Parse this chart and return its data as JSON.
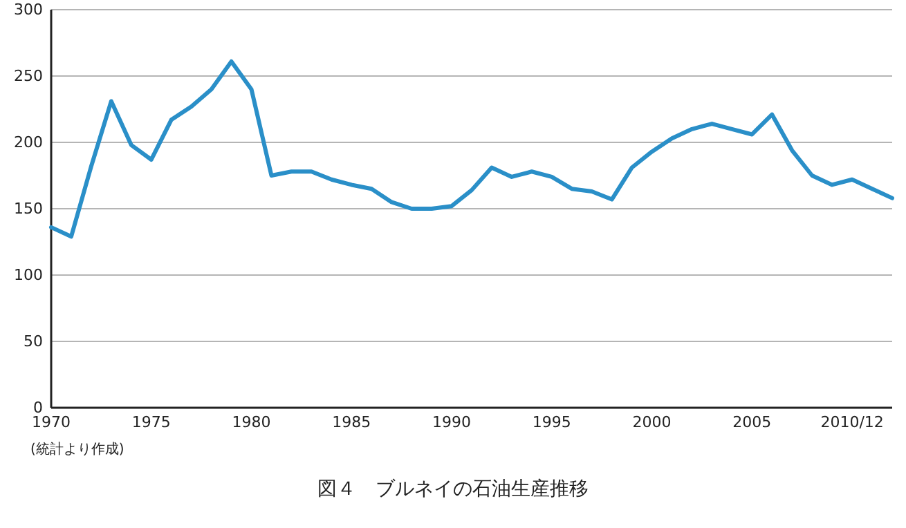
{
  "chart_data": {
    "type": "line",
    "title": "図４　ブルネイの石油生産推移",
    "annotations": [
      "(統計より作成)"
    ],
    "x": [
      1970,
      1971,
      1972,
      1973,
      1974,
      1975,
      1976,
      1977,
      1978,
      1979,
      1980,
      1981,
      1982,
      1983,
      1984,
      1985,
      1986,
      1987,
      1988,
      1989,
      1990,
      1991,
      1992,
      1993,
      1994,
      1995,
      1996,
      1997,
      1998,
      1999,
      2000,
      2001,
      2002,
      2003,
      2004,
      2005,
      2006,
      2007,
      2008,
      2009,
      2010,
      2011,
      2012
    ],
    "series": [
      {
        "color": "#2a8fc8",
        "values": [
          136,
          129,
          182,
          231,
          198,
          187,
          217,
          227,
          240,
          261,
          240,
          175,
          178,
          178,
          172,
          168,
          165,
          155,
          150,
          150,
          152,
          164,
          181,
          174,
          178,
          174,
          165,
          163,
          157,
          181,
          193,
          203,
          210,
          214,
          210,
          206,
          221,
          194,
          175,
          168,
          172,
          165,
          158
        ]
      }
    ],
    "xlim": [
      1970,
      2012
    ],
    "xticks": [
      1970,
      1975,
      1980,
      1985,
      1990,
      1995,
      2000,
      2005,
      {
        "value": 2010,
        "label": "2010/12"
      }
    ],
    "ylim": [
      0,
      300
    ],
    "yticks": [
      0,
      50,
      100,
      150,
      200,
      250,
      300
    ],
    "grid": "y",
    "line_style": "solid",
    "marker": "none"
  }
}
